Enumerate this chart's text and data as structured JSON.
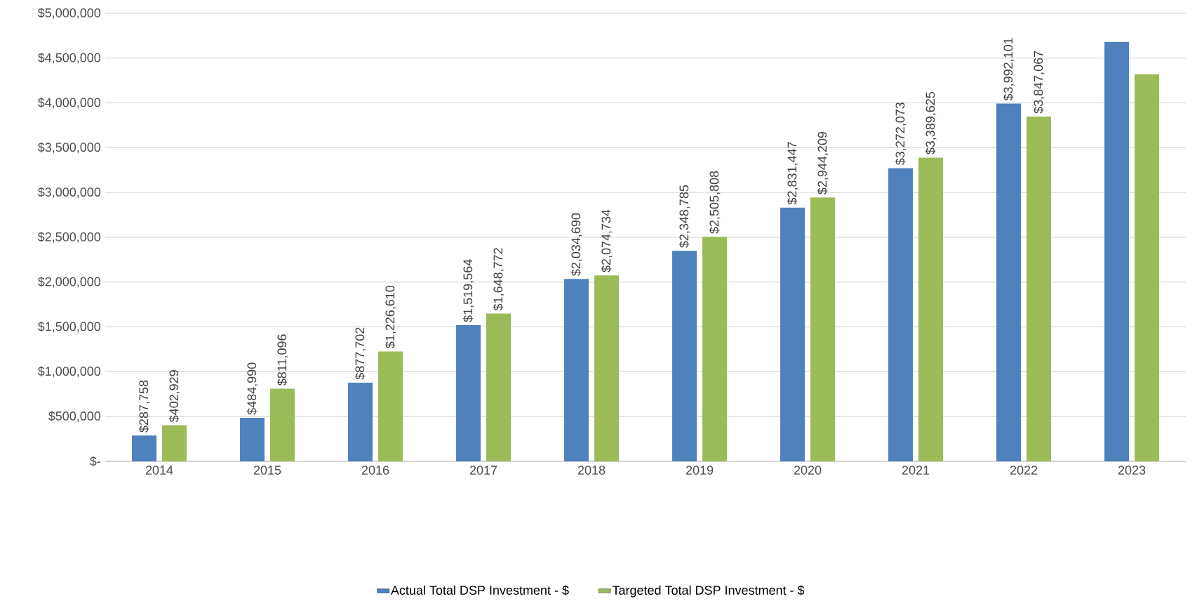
{
  "chart_data": {
    "type": "bar",
    "categories": [
      "2014",
      "2015",
      "2016",
      "2017",
      "2018",
      "2019",
      "2020",
      "2021",
      "2022",
      "2023"
    ],
    "series": [
      {
        "name": "Actual Total DSP Investment - $",
        "color": "#4f81bd",
        "values": [
          287758,
          484990,
          877702,
          1519564,
          2034690,
          2348785,
          2831447,
          3272073,
          3992101,
          4680000
        ],
        "value_labels": [
          "$287,758",
          "$484,990",
          "$877,702",
          "$1,519,564",
          "$2,034,690",
          "$2,348,785",
          "$2,831,447",
          "$3,272,073",
          "$3,992,101",
          null
        ]
      },
      {
        "name": "Targeted Total DSP Investment - $",
        "color": "#9bbb59",
        "values": [
          402929,
          811096,
          1226610,
          1648772,
          2074734,
          2505808,
          2944209,
          3389625,
          3847067,
          4320000
        ],
        "value_labels": [
          "$402,929",
          "$811,096",
          "$1,226,610",
          "$1,648,772",
          "$2,074,734",
          "$2,505,808",
          "$2,944,209",
          "$3,389,625",
          "$3,847,067",
          null
        ]
      }
    ],
    "ylim": [
      0,
      5000000
    ],
    "yticks": [
      {
        "value": 0,
        "label": "$-"
      },
      {
        "value": 500000,
        "label": "$500,000"
      },
      {
        "value": 1000000,
        "label": "$1,000,000"
      },
      {
        "value": 1500000,
        "label": "$1,500,000"
      },
      {
        "value": 2000000,
        "label": "$2,000,000"
      },
      {
        "value": 2500000,
        "label": "$2,500,000"
      },
      {
        "value": 3000000,
        "label": "$3,000,000"
      },
      {
        "value": 3500000,
        "label": "$3,500,000"
      },
      {
        "value": 4000000,
        "label": "$4,000,000"
      },
      {
        "value": 4500000,
        "label": "$4,500,000"
      },
      {
        "value": 5000000,
        "label": "$5,000,000"
      }
    ],
    "grid": "y",
    "legend": "bottom"
  }
}
